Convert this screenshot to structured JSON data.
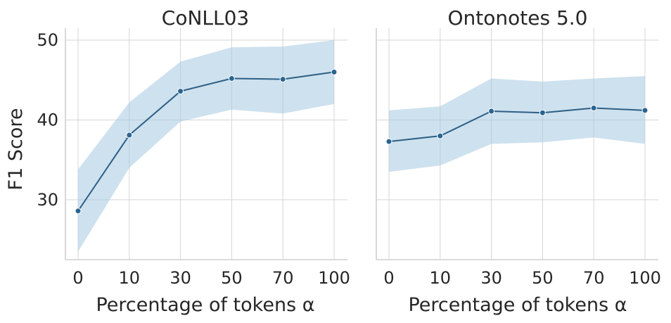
{
  "chart_data": [
    {
      "type": "line",
      "title": "CoNLL03",
      "xlabel": "Percentage of tokens α",
      "ylabel": "F1 Score",
      "categories": [
        "0",
        "10",
        "30",
        "50",
        "70",
        "100"
      ],
      "ylim": [
        22.5,
        51.5
      ],
      "yticks": [
        30,
        40,
        50
      ],
      "grid": true,
      "series": [
        {
          "name": "F1 Score",
          "values": [
            28.6,
            38.1,
            43.6,
            45.2,
            45.1,
            46.0
          ],
          "ci_low": [
            23.5,
            34.0,
            39.8,
            41.3,
            40.8,
            42.0
          ],
          "ci_high": [
            33.8,
            42.2,
            47.3,
            49.1,
            49.2,
            50.0
          ]
        }
      ]
    },
    {
      "type": "line",
      "title": "Ontonotes 5.0",
      "xlabel": "Percentage of tokens α",
      "ylabel": "",
      "categories": [
        "0",
        "10",
        "30",
        "50",
        "70",
        "100"
      ],
      "ylim": [
        22.5,
        51.5
      ],
      "yticks": [
        30,
        40,
        50
      ],
      "grid": true,
      "series": [
        {
          "name": "F1 Score",
          "values": [
            37.3,
            38.0,
            41.1,
            40.9,
            41.5,
            41.2
          ],
          "ci_low": [
            33.5,
            34.3,
            37.0,
            37.2,
            37.8,
            37.0
          ],
          "ci_high": [
            41.2,
            41.7,
            45.2,
            44.8,
            45.2,
            45.5
          ]
        }
      ]
    }
  ]
}
